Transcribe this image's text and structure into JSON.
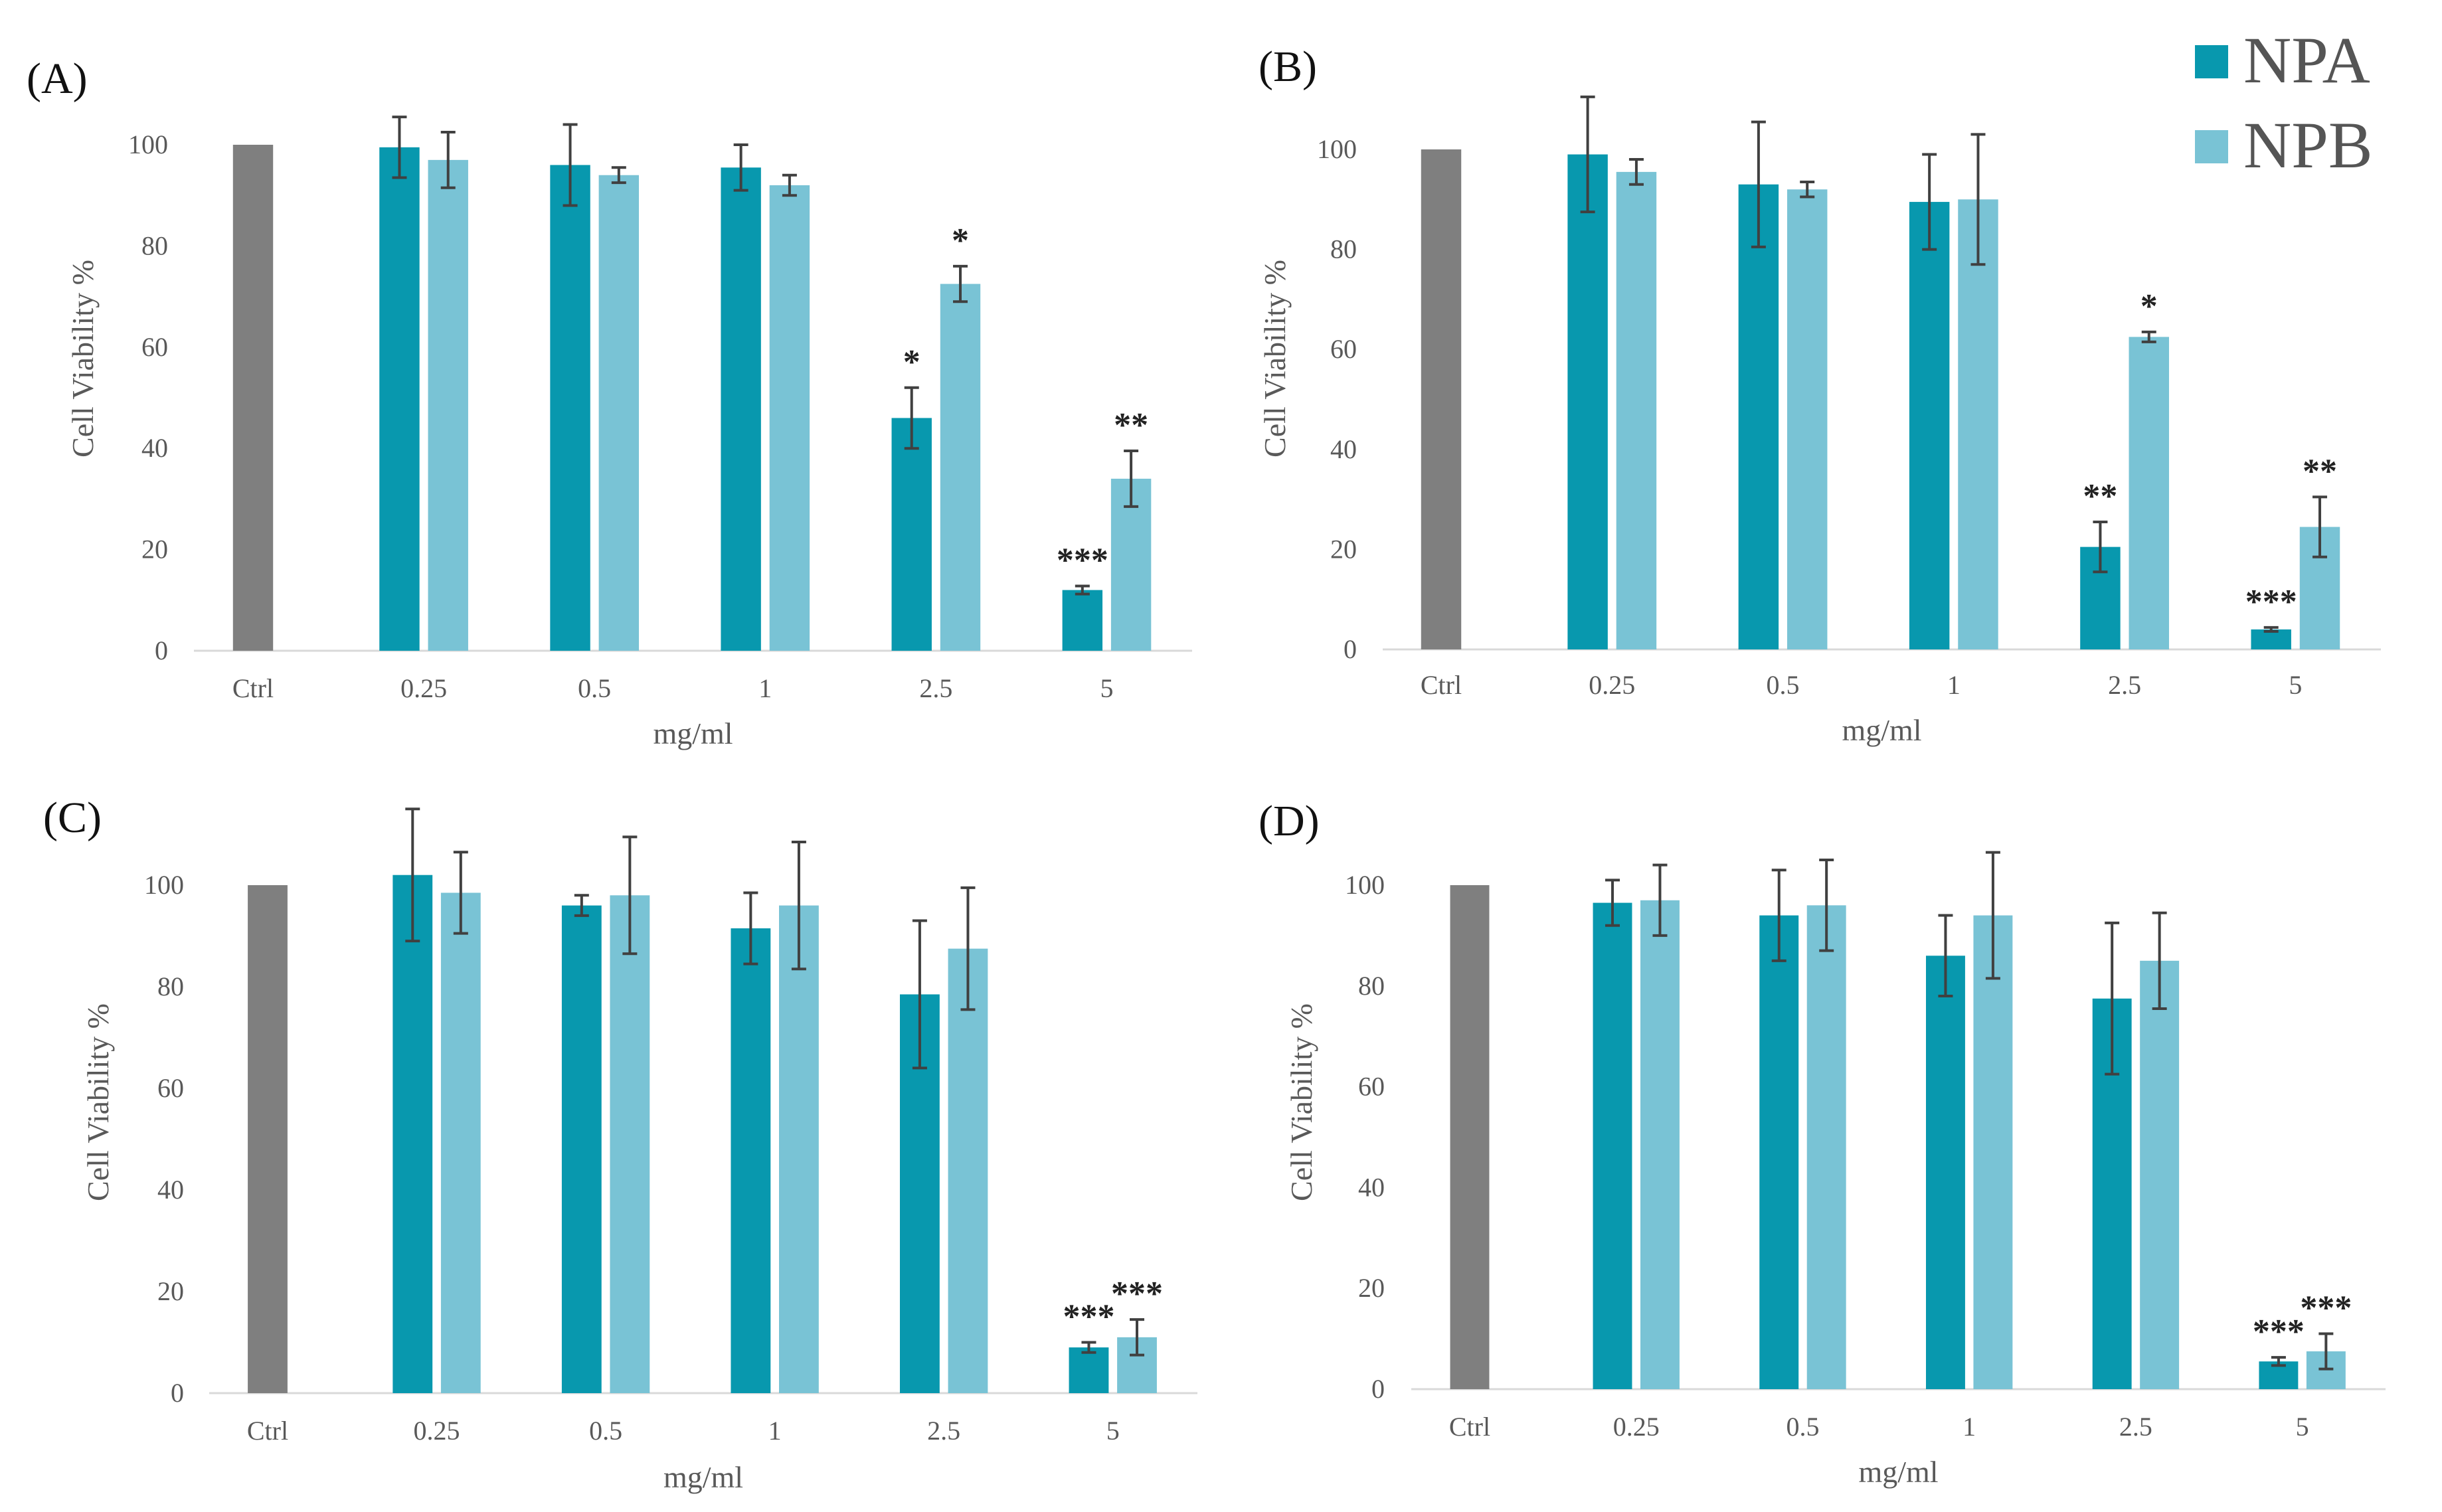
{
  "legend": [
    {
      "name": "NPA",
      "color": "#0898AE"
    },
    {
      "name": "NPB",
      "color": "#79C3D5"
    }
  ],
  "colors": {
    "ctrl": "#7F7F7F",
    "axis": "#D9D9D9",
    "error": "#404040",
    "text": "#595959"
  },
  "chart_data": [
    {
      "panel": "(A)",
      "type": "bar",
      "categories": [
        "Ctrl",
        "0.25",
        "0.5",
        "1",
        "2.5",
        "5"
      ],
      "xlabel": "mg/ml",
      "ylabel": "Cell Viability %",
      "ylim": [
        0,
        100
      ],
      "yticks": [
        "0",
        "20",
        "40",
        "60",
        "80",
        "100"
      ],
      "ctrl_value": 100,
      "series": [
        {
          "name": "NPA",
          "values": [
            null,
            99.5,
            96,
            95.5,
            46,
            12
          ],
          "errors": [
            null,
            6,
            8,
            4.5,
            6,
            0.8
          ],
          "sig": [
            "",
            "",
            "",
            "",
            "*",
            "***"
          ]
        },
        {
          "name": "NPB",
          "values": [
            null,
            97,
            94,
            92,
            72.5,
            34
          ],
          "errors": [
            null,
            5.5,
            1.5,
            2,
            3.5,
            5.5
          ],
          "sig": [
            "",
            "",
            "",
            "",
            "*",
            "**"
          ]
        }
      ]
    },
    {
      "panel": "(B)",
      "type": "bar",
      "categories": [
        "Ctrl",
        "0.25",
        "0.5",
        "1",
        "2.5",
        "5"
      ],
      "xlabel": "mg/ml",
      "ylabel": "Cell Viability %",
      "ylim": [
        0,
        100
      ],
      "yticks": [
        "0",
        "20",
        "40",
        "60",
        "80",
        "100"
      ],
      "ctrl_value": 100,
      "series": [
        {
          "name": "NPA",
          "values": [
            null,
            99,
            93,
            89.5,
            20.5,
            4
          ],
          "errors": [
            null,
            11.5,
            12.5,
            9.5,
            5,
            0.4
          ],
          "sig": [
            "",
            "",
            "",
            "",
            "**",
            "***"
          ]
        },
        {
          "name": "NPB",
          "values": [
            null,
            95.5,
            92,
            90,
            62.5,
            24.5
          ],
          "errors": [
            null,
            2.5,
            1.5,
            13,
            1,
            6
          ],
          "sig": [
            "",
            "",
            "",
            "",
            "*",
            "**"
          ]
        }
      ]
    },
    {
      "panel": "(C)",
      "type": "bar",
      "categories": [
        "Ctrl",
        "0.25",
        "0.5",
        "1",
        "2.5",
        "5"
      ],
      "xlabel": "mg/ml",
      "ylabel": "Cell Viability %",
      "ylim": [
        0,
        100
      ],
      "yticks": [
        "0",
        "20",
        "40",
        "60",
        "80",
        "100"
      ],
      "ctrl_value": 100,
      "series": [
        {
          "name": "NPA",
          "values": [
            null,
            102,
            96,
            91.5,
            78.5,
            9
          ],
          "errors": [
            null,
            13,
            2,
            7,
            14.5,
            1
          ],
          "sig": [
            "",
            "",
            "",
            "",
            "",
            "***"
          ]
        },
        {
          "name": "NPB",
          "values": [
            null,
            98.5,
            98,
            96,
            87.5,
            11
          ],
          "errors": [
            null,
            8,
            11.5,
            12.5,
            12,
            3.5
          ],
          "sig": [
            "",
            "",
            "",
            "",
            "",
            "***"
          ]
        }
      ]
    },
    {
      "panel": "(D)",
      "type": "bar",
      "categories": [
        "Ctrl",
        "0.25",
        "0.5",
        "1",
        "2.5",
        "5"
      ],
      "xlabel": "mg/ml",
      "ylabel": "Cell Viability %",
      "ylim": [
        0,
        100
      ],
      "yticks": [
        "0",
        "20",
        "40",
        "60",
        "80",
        "100"
      ],
      "ctrl_value": 100,
      "series": [
        {
          "name": "NPA",
          "values": [
            null,
            96.5,
            94,
            86,
            77.5,
            5.5
          ],
          "errors": [
            null,
            4.5,
            9,
            8,
            15,
            0.8
          ],
          "sig": [
            "",
            "",
            "",
            "",
            "",
            "***"
          ]
        },
        {
          "name": "NPB",
          "values": [
            null,
            97,
            96,
            94,
            85,
            7.5
          ],
          "errors": [
            null,
            7,
            9,
            12.5,
            9.5,
            3.5
          ],
          "sig": [
            "",
            "",
            "",
            "",
            "",
            "***"
          ]
        }
      ]
    }
  ]
}
